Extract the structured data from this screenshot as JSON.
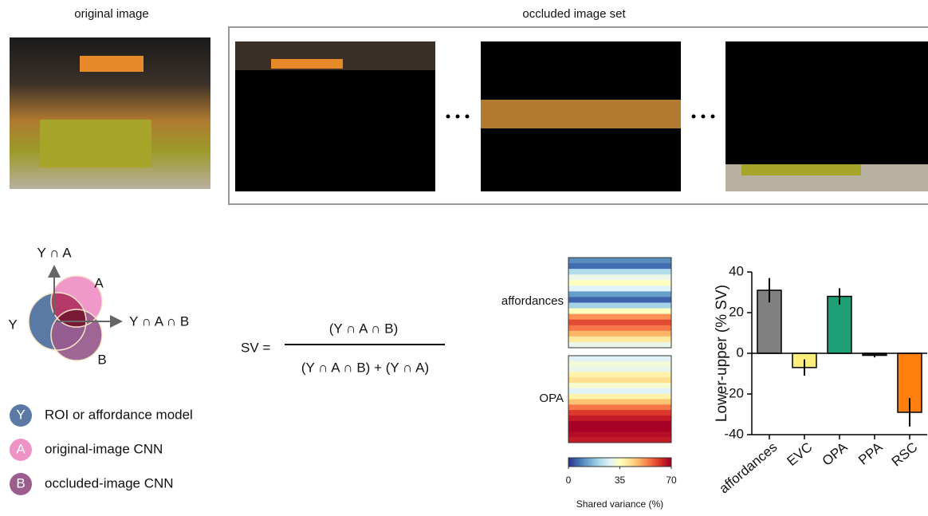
{
  "original_label": "original image",
  "occluded_label": "occluded image set",
  "venn": {
    "y_and_a": "Y ∩ A",
    "a": "A",
    "y": "Y",
    "y_and_a_and_b": "Y ∩ A ∩ B",
    "b": "B"
  },
  "formula": {
    "lhs": "SV =",
    "numerator": "(Y ∩ A ∩ B)",
    "denominator": "(Y ∩ A ∩ B) + (Y ∩ A)"
  },
  "legend": [
    {
      "letter": "Y",
      "text": "ROI or affordance model"
    },
    {
      "letter": "A",
      "text": "original-image CNN"
    },
    {
      "letter": "B",
      "text": "occluded-image CNN"
    }
  ],
  "chart_data": [
    {
      "type": "heatmap",
      "rows": [
        "affordances",
        "OPA"
      ],
      "values": [
        [
          10,
          6,
          22,
          30,
          35,
          28,
          12,
          5,
          20,
          35,
          52,
          60,
          55,
          48,
          40,
          30
        ],
        [
          28,
          32,
          30,
          38,
          42,
          33,
          28,
          38,
          46,
          55,
          62,
          66,
          70,
          70,
          68,
          66
        ]
      ],
      "colorbar_lim": [
        0,
        70
      ],
      "colorbar_ticks": [
        0,
        35,
        70
      ],
      "colorbar_label": "Shared variance (%)"
    },
    {
      "type": "bar",
      "ylabel": "Lower-upper (% SV)",
      "categories": [
        "affordances",
        "EVC",
        "OPA",
        "PPA",
        "RSC"
      ],
      "values": [
        31,
        -7,
        28,
        -1,
        -29
      ],
      "errors": [
        6,
        4,
        4,
        1,
        7
      ],
      "colors": [
        "#808080",
        "#fbee7c",
        "#1e9e74",
        "#222222",
        "#ff7f0e"
      ],
      "ylim": [
        -40,
        40
      ],
      "yticks": [
        -40,
        -20,
        0,
        20,
        40
      ]
    }
  ]
}
